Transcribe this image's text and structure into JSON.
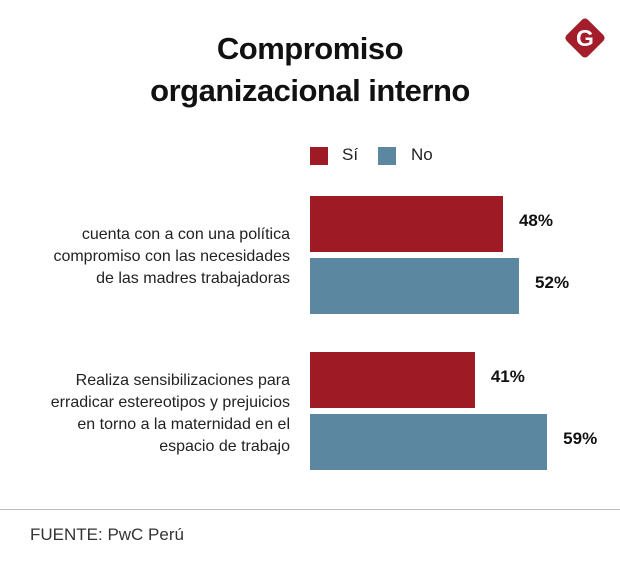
{
  "title_lines": [
    "Compromiso",
    "organizacional interno"
  ],
  "source": "FUENTE: PwC Perú",
  "logo_text": "G",
  "colors": {
    "si": "#9e1b25",
    "no": "#5b88a0",
    "logo": "#a31d2b"
  },
  "chart_data": {
    "type": "bar",
    "orientation": "horizontal",
    "title": "Compromiso organizacional interno",
    "categories": [
      [
        "cuenta con a con una política",
        "compromiso con las necesidades",
        "de las madres trabajadoras"
      ],
      [
        "Realiza sensibilizaciones para",
        "erradicar estereotipos y prejuicios",
        "en torno a la maternidad en el",
        "espacio de trabajo"
      ]
    ],
    "series": [
      {
        "name": "Sí",
        "values": [
          48,
          41
        ],
        "labels": [
          "48%",
          "41%"
        ]
      },
      {
        "name": "No",
        "values": [
          52,
          59
        ],
        "labels": [
          "52%",
          "59%"
        ]
      }
    ],
    "unit": "%",
    "legend": "top",
    "grid": false
  }
}
